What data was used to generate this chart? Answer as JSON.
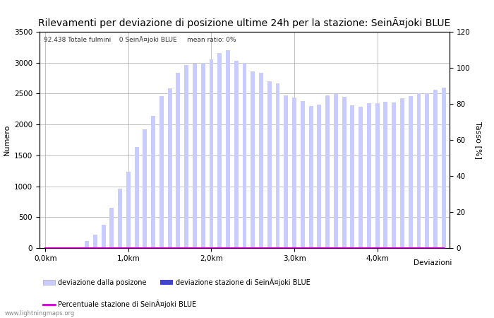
{
  "title": "Rilevamenti per deviazione di posizione ultime 24h per la stazione: SeinÃ¤joki BLUE",
  "subtitle": "92.438 Totale fulmini    0 SeinÃ¤joki BLUE     mean ratio: 0%",
  "xlabel": "Deviazioni",
  "ylabel_left": "Numero",
  "ylabel_right": "Tasso [%]",
  "watermark": "www.lightningmaps.org",
  "x_tick_labels": [
    "0,0km",
    "1,0km",
    "2,0km",
    "3,0km",
    "4,0km"
  ],
  "x_tick_positions": [
    0,
    10,
    20,
    30,
    40
  ],
  "ylim_left": [
    0,
    3500
  ],
  "ylim_right": [
    0,
    120
  ],
  "yticks_left": [
    0,
    500,
    1000,
    1500,
    2000,
    2500,
    3000,
    3500
  ],
  "yticks_right": [
    0,
    20,
    40,
    60,
    80,
    100,
    120
  ],
  "bar_values_total": [
    0,
    0,
    0,
    0,
    0,
    110,
    220,
    380,
    650,
    960,
    1230,
    1640,
    1920,
    2140,
    2460,
    2590,
    2840,
    2960,
    2980,
    3000,
    3050,
    3160,
    3200,
    3030,
    3000,
    2860,
    2840,
    2700,
    2660,
    2470,
    2440,
    2380,
    2300,
    2320,
    2470,
    2490,
    2450,
    2310,
    2290,
    2340,
    2350,
    2370,
    2360,
    2420,
    2460,
    2500,
    2510,
    2560,
    2600
  ],
  "bar_values_station": [
    0,
    0,
    0,
    0,
    0,
    0,
    0,
    0,
    0,
    0,
    0,
    0,
    0,
    0,
    0,
    0,
    0,
    0,
    0,
    0,
    0,
    0,
    0,
    0,
    0,
    0,
    0,
    0,
    0,
    0,
    0,
    0,
    0,
    0,
    0,
    0,
    0,
    0,
    0,
    0,
    0,
    0,
    0,
    0,
    0,
    0,
    0,
    0,
    0
  ],
  "bar_color_total": "#c8ccff",
  "bar_color_station": "#4444cc",
  "line_color": "#cc00cc",
  "line_values": [
    0,
    0,
    0,
    0,
    0,
    0,
    0,
    0,
    0,
    0,
    0,
    0,
    0,
    0,
    0,
    0,
    0,
    0,
    0,
    0,
    0,
    0,
    0,
    0,
    0,
    0,
    0,
    0,
    0,
    0,
    0,
    0,
    0,
    0,
    0,
    0,
    0,
    0,
    0,
    0,
    0,
    0,
    0,
    0,
    0,
    0,
    0,
    0,
    0
  ],
  "legend_label_total": "deviazione dalla posizone",
  "legend_label_station": "deviazione stazione di SeinÃ¤joki BLUE",
  "legend_label_line": "Percentuale stazione di SeinÃ¤joki BLUE",
  "background_color": "#ffffff",
  "grid_color": "#aaaaaa",
  "title_fontsize": 10,
  "axis_fontsize": 8,
  "tick_fontsize": 7.5,
  "n_bars": 49,
  "bar_width": 0.5
}
